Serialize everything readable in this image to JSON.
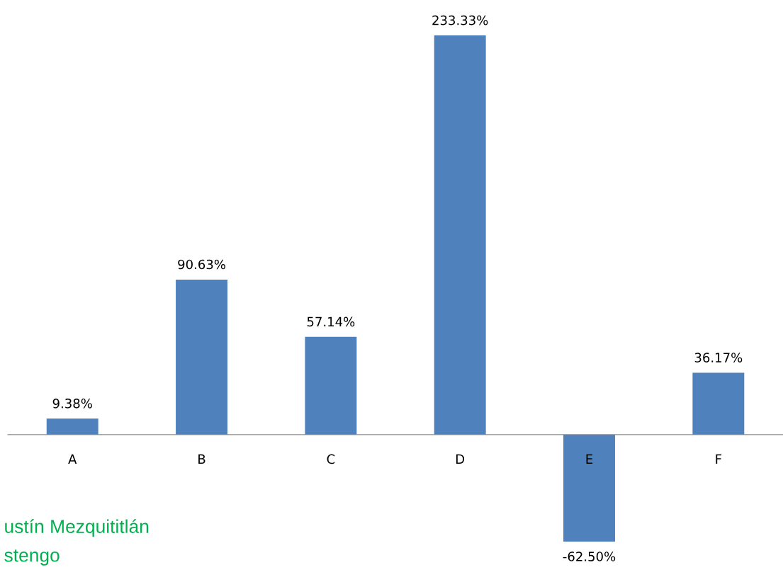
{
  "chart_data": {
    "type": "bar",
    "categories": [
      "A",
      "B",
      "C",
      "D",
      "E",
      "F"
    ],
    "values": [
      9.38,
      90.63,
      57.14,
      233.33,
      -62.5,
      36.17
    ],
    "value_labels": [
      "9.38%",
      "90.63%",
      "57.14%",
      "233.33%",
      "-62.50%",
      "36.17%"
    ],
    "color": "#4f81bd",
    "annotations": [
      "ustín Mezquititlán",
      "stengo"
    ]
  }
}
